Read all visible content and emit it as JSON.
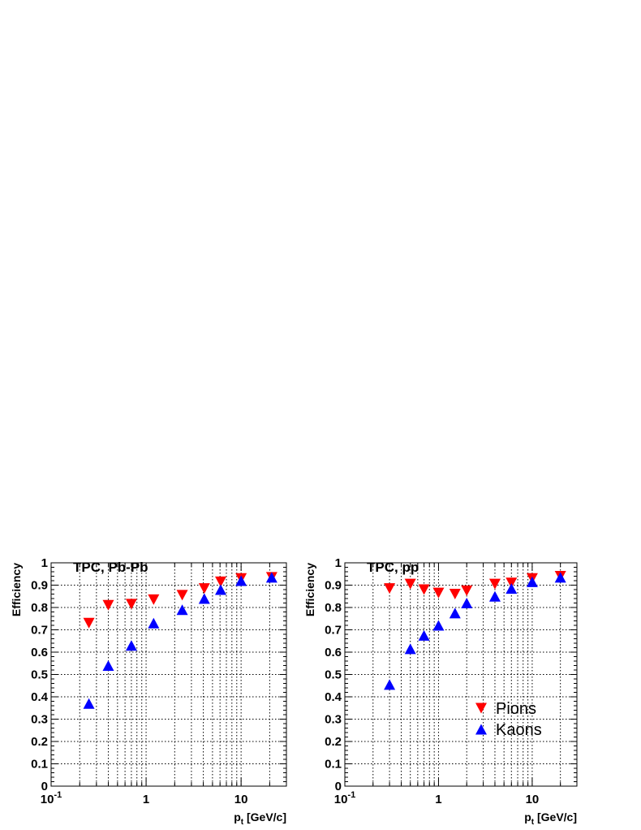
{
  "chart_data": [
    {
      "type": "scatter",
      "title": "TPC, Pb-Pb",
      "ylabel": "Efficiency",
      "xlabel_main": "p",
      "xlabel_sub": "t",
      "xlabel_unit": " [GeV/c]",
      "xscale": "log",
      "xlim": [
        0.1,
        30
      ],
      "ylim": [
        0,
        1
      ],
      "grid": true,
      "xtick_labels": [
        {
          "value": 0.1,
          "base": "10",
          "exp": "-1"
        },
        {
          "value": 1,
          "base": "1",
          "exp": ""
        },
        {
          "value": 10,
          "base": "10",
          "exp": ""
        }
      ],
      "ytick_labels": [
        "0",
        "0.1",
        "0.2",
        "0.3",
        "0.4",
        "0.5",
        "0.6",
        "0.7",
        "0.8",
        "0.9",
        "1"
      ],
      "series": [
        {
          "name": "Pions",
          "marker": "triangle-down",
          "color": "#ff0000",
          "x": [
            0.25,
            0.4,
            0.7,
            1.2,
            2.4,
            4.1,
            6.1,
            10,
            21
          ],
          "y": [
            0.73,
            0.81,
            0.815,
            0.835,
            0.855,
            0.885,
            0.915,
            0.93,
            0.935
          ]
        },
        {
          "name": "Kaons",
          "marker": "triangle-up",
          "color": "#0000ff",
          "x": [
            0.25,
            0.4,
            0.7,
            1.2,
            2.4,
            4.1,
            6.1,
            10,
            21
          ],
          "y": [
            0.37,
            0.54,
            0.63,
            0.73,
            0.79,
            0.84,
            0.88,
            0.92,
            0.935
          ]
        }
      ]
    },
    {
      "type": "scatter",
      "title": "TPC, pp",
      "ylabel": "Efficiency",
      "xlabel_main": "p",
      "xlabel_sub": "t",
      "xlabel_unit": " [GeV/c]",
      "xscale": "log",
      "xlim": [
        0.1,
        30
      ],
      "ylim": [
        0,
        1
      ],
      "grid": true,
      "legend_position": "bottom-right",
      "xtick_labels": [
        {
          "value": 0.1,
          "base": "10",
          "exp": "-1"
        },
        {
          "value": 1,
          "base": "1",
          "exp": ""
        },
        {
          "value": 10,
          "base": "10",
          "exp": ""
        }
      ],
      "ytick_labels": [
        "0",
        "0.1",
        "0.2",
        "0.3",
        "0.4",
        "0.5",
        "0.6",
        "0.7",
        "0.8",
        "0.9",
        "1"
      ],
      "series": [
        {
          "name": "Pions",
          "marker": "triangle-down",
          "color": "#ff0000",
          "x": [
            0.3,
            0.5,
            0.7,
            1.0,
            1.5,
            2.0,
            4.0,
            6.0,
            10,
            20
          ],
          "y": [
            0.885,
            0.905,
            0.88,
            0.865,
            0.86,
            0.875,
            0.905,
            0.91,
            0.93,
            0.94
          ]
        },
        {
          "name": "Kaons",
          "marker": "triangle-up",
          "color": "#0000ff",
          "x": [
            0.3,
            0.5,
            0.7,
            1.0,
            1.5,
            2.0,
            4.0,
            6.0,
            10,
            20
          ],
          "y": [
            0.455,
            0.615,
            0.675,
            0.72,
            0.775,
            0.82,
            0.85,
            0.885,
            0.915,
            0.935
          ]
        }
      ]
    }
  ]
}
